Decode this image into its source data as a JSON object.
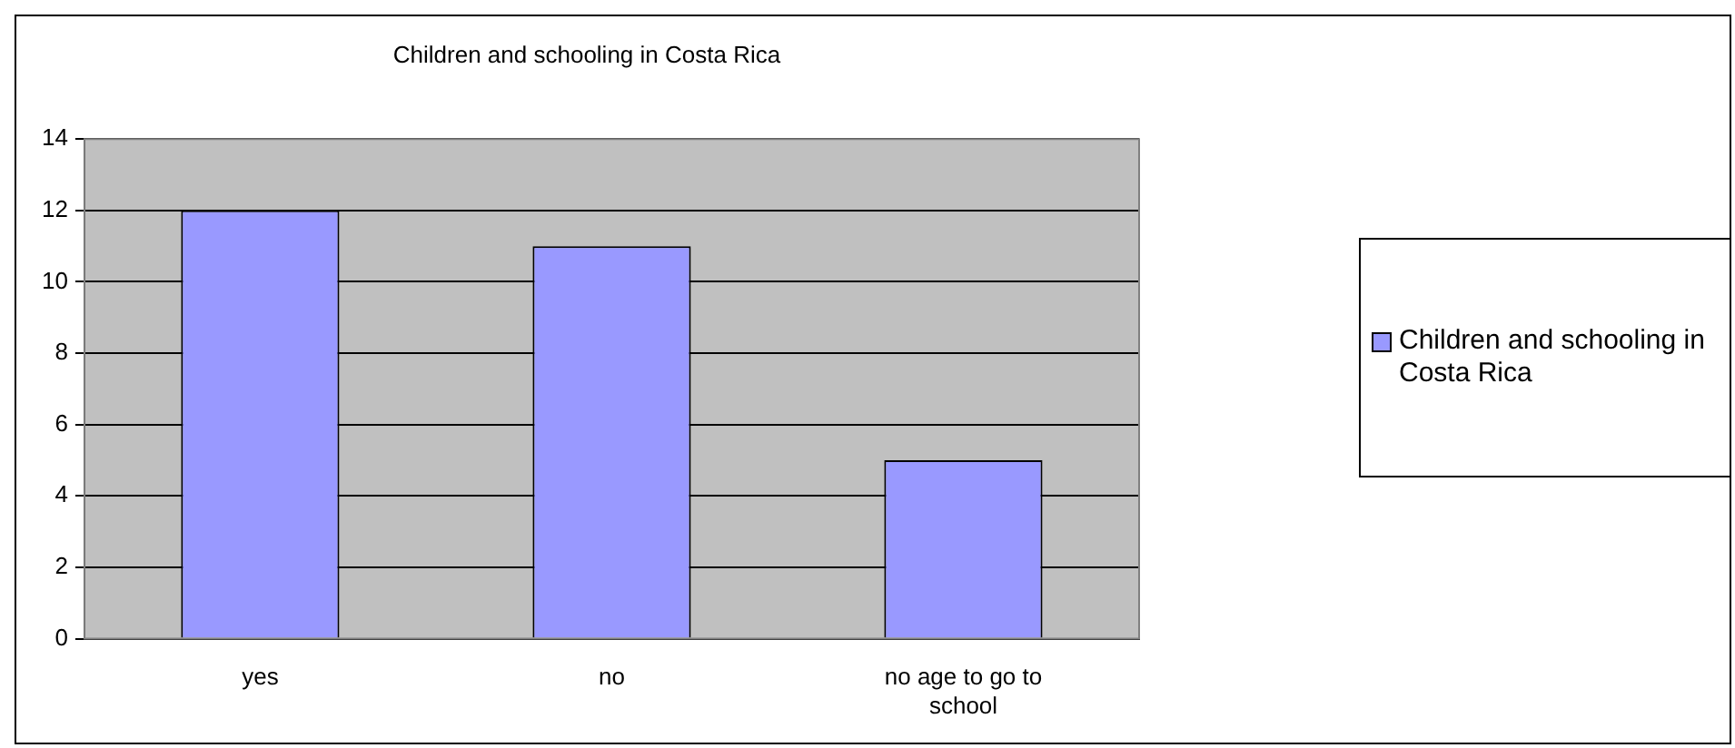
{
  "chart_data": {
    "type": "bar",
    "title": "Children and schooling in Costa Rica",
    "categories": [
      "yes",
      "no",
      "no age to go to school"
    ],
    "series": [
      {
        "name": "Children and schooling in Costa Rica",
        "color": "#9999ff",
        "values": [
          12,
          11,
          5
        ]
      }
    ],
    "ylim": [
      0,
      14
    ],
    "yticks": [
      0,
      2,
      4,
      6,
      8,
      10,
      12,
      14
    ],
    "grid": "y",
    "legend": "right"
  }
}
